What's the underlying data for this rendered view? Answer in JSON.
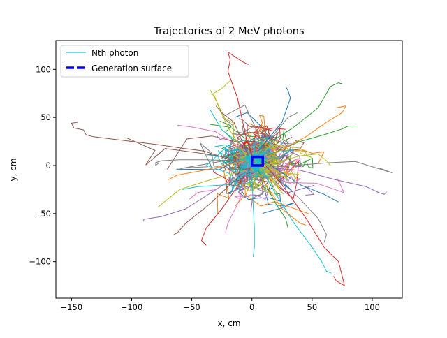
{
  "chart_data": {
    "type": "line",
    "title": "Trajectories of 2 MeV photons",
    "xlabel": "x, cm",
    "ylabel": "y, cm",
    "xlim": [
      -163,
      125
    ],
    "ylim": [
      -138,
      130
    ],
    "xticks": [
      -150,
      -100,
      -50,
      0,
      50,
      100
    ],
    "yticks": [
      -100,
      -50,
      0,
      50,
      100
    ],
    "xtick_labels": [
      "−150",
      "−100",
      "−50",
      "0",
      "50",
      "100"
    ],
    "ytick_labels": [
      "−100",
      "−50",
      "0",
      "50",
      "100"
    ],
    "grid": false,
    "legend": {
      "placement": "top-left",
      "entries": [
        {
          "label": "Nth photon",
          "color": "#17becf",
          "style": "solid"
        },
        {
          "label": "Generation surface",
          "color": "#0000ff",
          "style": "dashed"
        }
      ]
    },
    "series": [
      {
        "color": "#8c564b",
        "points": [
          [
            -13,
            4
          ],
          [
            -40,
            15
          ],
          [
            -58,
            18
          ],
          [
            -80,
            22
          ],
          [
            -132,
            30
          ],
          [
            -138,
            32
          ],
          [
            -140,
            37
          ],
          [
            -148,
            39
          ],
          [
            -150,
            44
          ],
          [
            -145,
            45
          ]
        ]
      },
      {
        "color": "#d62728",
        "points": [
          [
            2,
            3
          ],
          [
            -5,
            30
          ],
          [
            -12,
            70
          ],
          [
            -20,
            98
          ],
          [
            -18,
            110
          ],
          [
            -20,
            118
          ],
          [
            -8,
            108
          ],
          [
            -3,
            105
          ]
        ]
      },
      {
        "color": "#d62728",
        "points": [
          [
            8,
            5
          ],
          [
            25,
            -20
          ],
          [
            45,
            -55
          ],
          [
            60,
            -85
          ],
          [
            72,
            -100
          ],
          [
            75,
            -115
          ],
          [
            77,
            -125
          ],
          [
            70,
            -120
          ],
          [
            68,
            -115
          ]
        ]
      },
      {
        "color": "#17becf",
        "points": [
          [
            5,
            4
          ],
          [
            20,
            -30
          ],
          [
            35,
            -60
          ],
          [
            50,
            -85
          ],
          [
            58,
            -100
          ],
          [
            62,
            -110
          ],
          [
            66,
            -112
          ]
        ]
      },
      {
        "color": "#9467bd",
        "points": [
          [
            10,
            -2
          ],
          [
            40,
            -5
          ],
          [
            70,
            -15
          ],
          [
            95,
            -22
          ],
          [
            105,
            -28
          ],
          [
            110,
            -30
          ],
          [
            112,
            -27
          ]
        ]
      },
      {
        "color": "#2ca02c",
        "points": [
          [
            10,
            20
          ],
          [
            35,
            40
          ],
          [
            55,
            60
          ],
          [
            62,
            75
          ],
          [
            65,
            82
          ],
          [
            72,
            86
          ],
          [
            75,
            85
          ]
        ]
      },
      {
        "color": "#2ca02c",
        "points": [
          [
            12,
            10
          ],
          [
            40,
            25
          ],
          [
            60,
            32
          ],
          [
            75,
            38
          ],
          [
            80,
            41
          ],
          [
            87,
            41
          ]
        ]
      },
      {
        "color": "#9467bd",
        "points": [
          [
            -5,
            -5
          ],
          [
            -30,
            -25
          ],
          [
            -55,
            -45
          ],
          [
            -75,
            -53
          ],
          [
            -90,
            -56
          ],
          [
            -90,
            -58
          ]
        ]
      },
      {
        "color": "#7f7f7f",
        "points": [
          [
            -10,
            5
          ],
          [
            -40,
            6
          ],
          [
            -60,
            6
          ],
          [
            -75,
            5
          ],
          [
            -80,
            3
          ],
          [
            -80,
            0
          ],
          [
            -77,
            3
          ]
        ]
      },
      {
        "color": "#bcbd22",
        "points": [
          [
            -5,
            10
          ],
          [
            -20,
            40
          ],
          [
            -28,
            62
          ],
          [
            -32,
            75
          ],
          [
            -25,
            80
          ],
          [
            -20,
            86
          ],
          [
            -18,
            88
          ]
        ]
      },
      {
        "color": "#7f7f7f",
        "points": [
          [
            15,
            -5
          ],
          [
            40,
            -35
          ],
          [
            55,
            -55
          ],
          [
            62,
            -72
          ],
          [
            60,
            -80
          ]
        ]
      },
      {
        "color": "#8c564b",
        "points": [
          [
            -8,
            -8
          ],
          [
            -35,
            -40
          ],
          [
            -55,
            -60
          ],
          [
            -62,
            -70
          ],
          [
            -65,
            -72
          ]
        ]
      },
      {
        "color": "#17becf",
        "points": [
          [
            0,
            -10
          ],
          [
            1,
            -40
          ],
          [
            2,
            -65
          ],
          [
            2,
            -85
          ],
          [
            1,
            -95
          ]
        ]
      },
      {
        "color": "#ff7f0e",
        "points": [
          [
            15,
            10
          ],
          [
            45,
            30
          ],
          [
            62,
            45
          ],
          [
            75,
            55
          ],
          [
            78,
            62
          ],
          [
            70,
            60
          ]
        ]
      },
      {
        "color": "#1f77b4",
        "points": [
          [
            5,
            15
          ],
          [
            25,
            45
          ],
          [
            32,
            70
          ],
          [
            30,
            78
          ],
          [
            28,
            82
          ]
        ]
      },
      {
        "color": "#e377c2",
        "points": [
          [
            -5,
            -5
          ],
          [
            -30,
            -25
          ],
          [
            -45,
            -28
          ],
          [
            -52,
            -35
          ]
        ]
      },
      {
        "color": "#ff7f0e",
        "points": [
          [
            -5,
            5
          ],
          [
            -40,
            -5
          ],
          [
            -62,
            -10
          ],
          [
            -70,
            -15
          ]
        ]
      },
      {
        "color": "#bcbd22",
        "points": [
          [
            -5,
            -5
          ],
          [
            -35,
            -15
          ],
          [
            -60,
            -25
          ],
          [
            -75,
            -40
          ],
          [
            -78,
            -43
          ]
        ]
      },
      {
        "color": "#d62728",
        "points": [
          [
            0,
            0
          ],
          [
            -25,
            -45
          ],
          [
            -38,
            -65
          ],
          [
            -42,
            -78
          ],
          [
            -38,
            -83
          ]
        ]
      },
      {
        "color": "#2ca02c",
        "points": [
          [
            5,
            -5
          ],
          [
            20,
            -40
          ],
          [
            28,
            -55
          ],
          [
            30,
            -65
          ]
        ]
      },
      {
        "color": "#e377c2",
        "points": [
          [
            -3,
            3
          ],
          [
            -10,
            -35
          ],
          [
            -20,
            -60
          ],
          [
            -22,
            -70
          ]
        ]
      },
      {
        "color": "#1f77b4",
        "points": [
          [
            10,
            5
          ],
          [
            40,
            -20
          ],
          [
            60,
            -30
          ],
          [
            72,
            -38
          ]
        ]
      },
      {
        "color": "#17becf",
        "points": [
          [
            -2,
            -5
          ],
          [
            -20,
            -20
          ],
          [
            -45,
            -22
          ],
          [
            -58,
            -25
          ]
        ]
      },
      {
        "color": "#bcbd22",
        "points": [
          [
            10,
            0
          ],
          [
            40,
            10
          ],
          [
            55,
            12
          ],
          [
            62,
            5
          ],
          [
            65,
            0
          ]
        ]
      },
      {
        "color": "#e377c2",
        "points": [
          [
            -5,
            15
          ],
          [
            -30,
            35
          ],
          [
            -50,
            40
          ],
          [
            -62,
            42
          ]
        ]
      },
      {
        "color": "#ff7f0e",
        "points": [
          [
            5,
            -8
          ],
          [
            25,
            -45
          ],
          [
            40,
            -60
          ],
          [
            45,
            -62
          ]
        ]
      },
      {
        "color": "#8c564b",
        "points": [
          [
            -3,
            10
          ],
          [
            -15,
            45
          ],
          [
            -25,
            55
          ],
          [
            -30,
            62
          ]
        ]
      },
      {
        "color": "#7f7f7f",
        "points": [
          [
            5,
            10
          ],
          [
            20,
            35
          ],
          [
            30,
            50
          ],
          [
            38,
            55
          ]
        ]
      }
    ],
    "clouds": [
      {
        "color": "#1f77b4",
        "seed": 11
      },
      {
        "color": "#ff7f0e",
        "seed": 23
      },
      {
        "color": "#2ca02c",
        "seed": 37
      },
      {
        "color": "#d62728",
        "seed": 41
      },
      {
        "color": "#9467bd",
        "seed": 53
      },
      {
        "color": "#8c564b",
        "seed": 67
      },
      {
        "color": "#e377c2",
        "seed": 71
      },
      {
        "color": "#7f7f7f",
        "seed": 83
      },
      {
        "color": "#bcbd22",
        "seed": 97
      },
      {
        "color": "#17becf",
        "seed": 101
      }
    ],
    "generation_surface": {
      "x": [
        0,
        9
      ],
      "y": [
        0,
        9
      ],
      "color": "#0000ff"
    }
  }
}
